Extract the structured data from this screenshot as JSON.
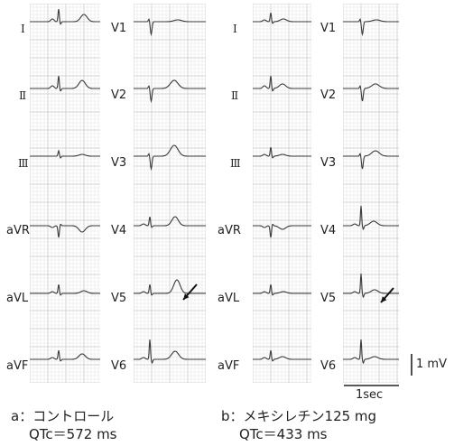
{
  "panels": [
    {
      "id": "a",
      "caption_title": "a：コントロール",
      "caption_qtc": "QTc＝572 ms",
      "limb_leads": [
        "Ⅰ",
        "Ⅱ",
        "Ⅲ",
        "aVR",
        "aVL",
        "aVF"
      ],
      "chest_leads": [
        "V1",
        "V2",
        "V3",
        "V4",
        "V5",
        "V6"
      ],
      "arrow_lead": "V5"
    },
    {
      "id": "b",
      "caption_title": "b：メキシレチン125 mg",
      "caption_qtc": "QTc＝433 ms",
      "limb_leads": [
        "Ⅰ",
        "Ⅱ",
        "Ⅲ",
        "aVR",
        "aVL",
        "aVF"
      ],
      "chest_leads": [
        "V1",
        "V2",
        "V3",
        "V4",
        "V5",
        "V6"
      ],
      "arrow_lead": "V5"
    }
  ],
  "scale": {
    "voltage_label": "1 mV",
    "time_label": "1sec"
  },
  "colors": {
    "grid_major": "#c9c9c9",
    "grid_minor": "#e4e4e4",
    "trace": "#3a3a3a",
    "text": "#222222"
  }
}
